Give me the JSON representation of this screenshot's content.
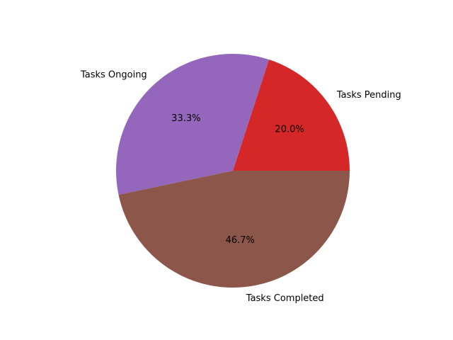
{
  "chart_data": {
    "type": "pie",
    "title": "",
    "start_angle_deg": 0,
    "direction": "counterclockwise",
    "slices": [
      {
        "label": "Tasks Pending",
        "value": 20.0,
        "pct_label": "20.0%",
        "color": "#d62728"
      },
      {
        "label": "Tasks Ongoing",
        "value": 33.3,
        "pct_label": "33.3%",
        "color": "#9467bd"
      },
      {
        "label": "Tasks Completed",
        "value": 46.7,
        "pct_label": "46.7%",
        "color": "#8c564b"
      }
    ]
  }
}
